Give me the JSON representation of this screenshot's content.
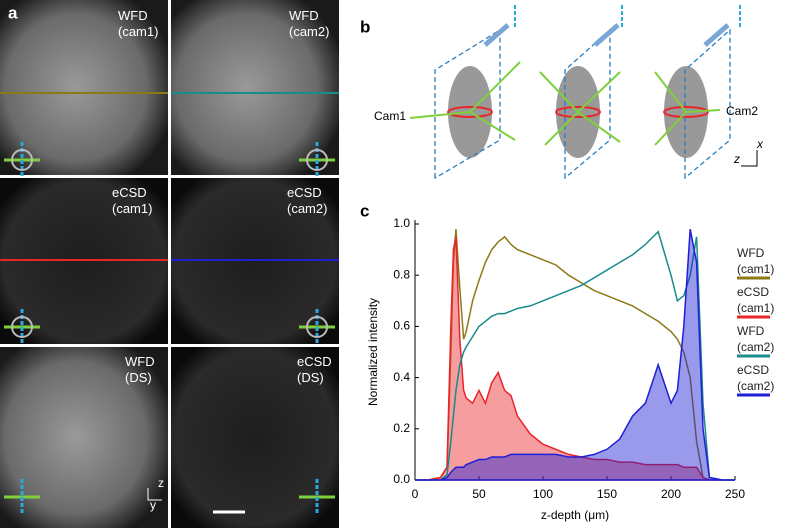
{
  "panel_a": {
    "label": "a",
    "images": [
      {
        "label": "WFD (cam1)"
      },
      {
        "label": "WFD (cam2)"
      },
      {
        "label": "eCSD (cam1)"
      },
      {
        "label": "eCSD (cam2)"
      },
      {
        "label": "WFD (DS)"
      },
      {
        "label": "eCSD (DS)"
      }
    ],
    "axes": [
      "z",
      "y"
    ]
  },
  "panel_b": {
    "label": "b",
    "cam_left": "Cam1",
    "cam_right": "Cam2",
    "axes": [
      "x",
      "z"
    ]
  },
  "panel_c": {
    "label": "c"
  },
  "chart_data": {
    "type": "line",
    "xlabel": "z-depth (μm)",
    "ylabel": "Normalized intensity",
    "xlim": [
      0,
      250
    ],
    "xticks": [
      0,
      50,
      100,
      150,
      200,
      250
    ],
    "ylim": [
      0,
      1.0
    ],
    "yticks": [
      {
        "value": 0,
        "label": "0.0"
      },
      0.2,
      0.4,
      0.6,
      0.8,
      {
        "value": 1.0,
        "label": "1.0"
      }
    ],
    "x": [
      0,
      10,
      20,
      25,
      28,
      30,
      32,
      35,
      38,
      40,
      45,
      50,
      55,
      60,
      65,
      70,
      75,
      80,
      90,
      100,
      110,
      120,
      130,
      140,
      150,
      160,
      170,
      180,
      190,
      200,
      205,
      210,
      215,
      220,
      225,
      230,
      240,
      250
    ],
    "series": [
      {
        "name": "WFD (cam1)",
        "color": "#8c7a16",
        "area": false,
        "values": [
          0,
          0,
          0.01,
          0.05,
          0.5,
          0.85,
          0.98,
          0.75,
          0.55,
          0.58,
          0.7,
          0.78,
          0.85,
          0.9,
          0.93,
          0.95,
          0.92,
          0.9,
          0.88,
          0.86,
          0.84,
          0.8,
          0.77,
          0.74,
          0.72,
          0.7,
          0.68,
          0.65,
          0.62,
          0.58,
          0.55,
          0.5,
          0.4,
          0.15,
          0.01,
          0,
          0,
          0
        ]
      },
      {
        "name": "eCSD (cam1)",
        "color": "#e8262a",
        "area": true,
        "values": [
          0,
          0,
          0.01,
          0.05,
          0.6,
          0.9,
          0.95,
          0.55,
          0.35,
          0.32,
          0.3,
          0.35,
          0.3,
          0.38,
          0.42,
          0.35,
          0.33,
          0.25,
          0.18,
          0.14,
          0.12,
          0.1,
          0.09,
          0.08,
          0.08,
          0.07,
          0.07,
          0.06,
          0.06,
          0.06,
          0.06,
          0.05,
          0.05,
          0.05,
          0.01,
          0,
          0,
          0
        ]
      },
      {
        "name": "WFD (cam2)",
        "color": "#1a8a8a",
        "area": false,
        "values": [
          0,
          0,
          0,
          0.02,
          0.15,
          0.25,
          0.35,
          0.45,
          0.5,
          0.52,
          0.56,
          0.6,
          0.62,
          0.64,
          0.65,
          0.65,
          0.66,
          0.67,
          0.68,
          0.7,
          0.72,
          0.74,
          0.76,
          0.79,
          0.82,
          0.85,
          0.88,
          0.92,
          0.97,
          0.8,
          0.7,
          0.72,
          0.8,
          0.95,
          0.3,
          0.01,
          0,
          0
        ]
      },
      {
        "name": "eCSD (cam2)",
        "color": "#1f1fd6",
        "area": true,
        "values": [
          0,
          0,
          0,
          0.01,
          0.03,
          0.04,
          0.05,
          0.05,
          0.05,
          0.06,
          0.07,
          0.08,
          0.08,
          0.09,
          0.09,
          0.09,
          0.1,
          0.1,
          0.1,
          0.1,
          0.1,
          0.09,
          0.09,
          0.1,
          0.12,
          0.16,
          0.25,
          0.3,
          0.45,
          0.3,
          0.35,
          0.6,
          0.98,
          0.85,
          0.2,
          0.01,
          0,
          0
        ]
      }
    ]
  }
}
